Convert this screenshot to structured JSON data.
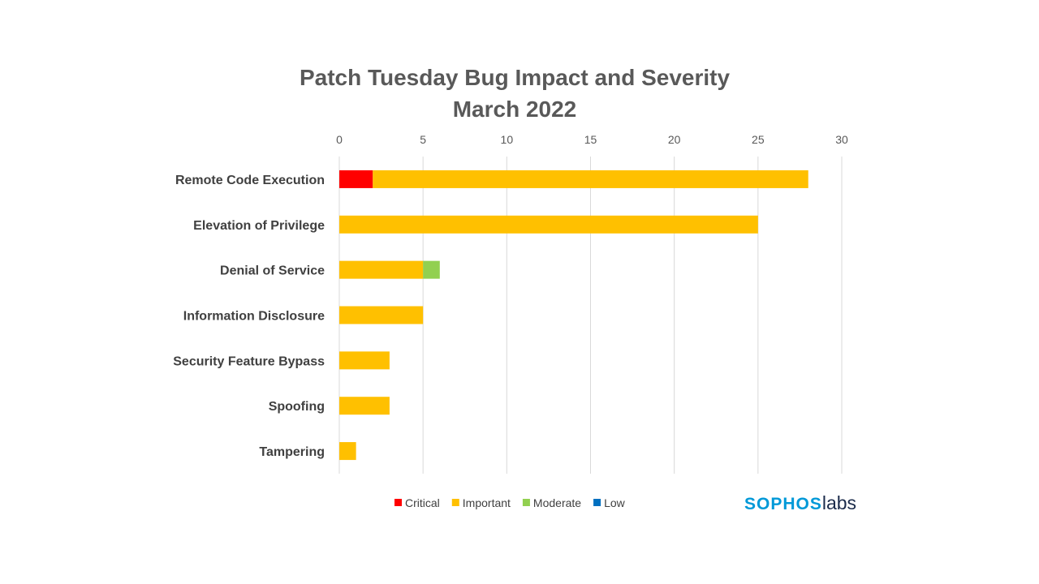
{
  "chart_data": {
    "type": "bar",
    "orientation": "horizontal",
    "stacked": true,
    "title": [
      "Patch Tuesday Bug Impact and Severity",
      "March 2022"
    ],
    "categories": [
      "Remote Code Execution",
      "Elevation of Privilege",
      "Denial of Service",
      "Information Disclosure",
      "Security Feature Bypass",
      "Spoofing",
      "Tampering"
    ],
    "series": [
      {
        "name": "Critical",
        "color": "#FF0000",
        "values": [
          2,
          0,
          0,
          0,
          0,
          0,
          0
        ]
      },
      {
        "name": "Important",
        "color": "#FFC000",
        "values": [
          26,
          25,
          5,
          5,
          3,
          3,
          1
        ]
      },
      {
        "name": "Moderate",
        "color": "#92D050",
        "values": [
          0,
          0,
          1,
          0,
          0,
          0,
          0
        ]
      },
      {
        "name": "Low",
        "color": "#0070C0",
        "values": [
          0,
          0,
          0,
          0,
          0,
          0,
          0
        ]
      }
    ],
    "xlim": [
      0,
      30
    ],
    "x_ticks": [
      "0",
      "5",
      "10",
      "15",
      "20",
      "25",
      "30"
    ],
    "x_axis_position": "top",
    "grid": true,
    "legend_position": "bottom"
  },
  "logo": {
    "part_a": "SOPHOS",
    "part_b": "labs",
    "color_a": "#0099D8",
    "color_b": "#1B2B4B"
  }
}
